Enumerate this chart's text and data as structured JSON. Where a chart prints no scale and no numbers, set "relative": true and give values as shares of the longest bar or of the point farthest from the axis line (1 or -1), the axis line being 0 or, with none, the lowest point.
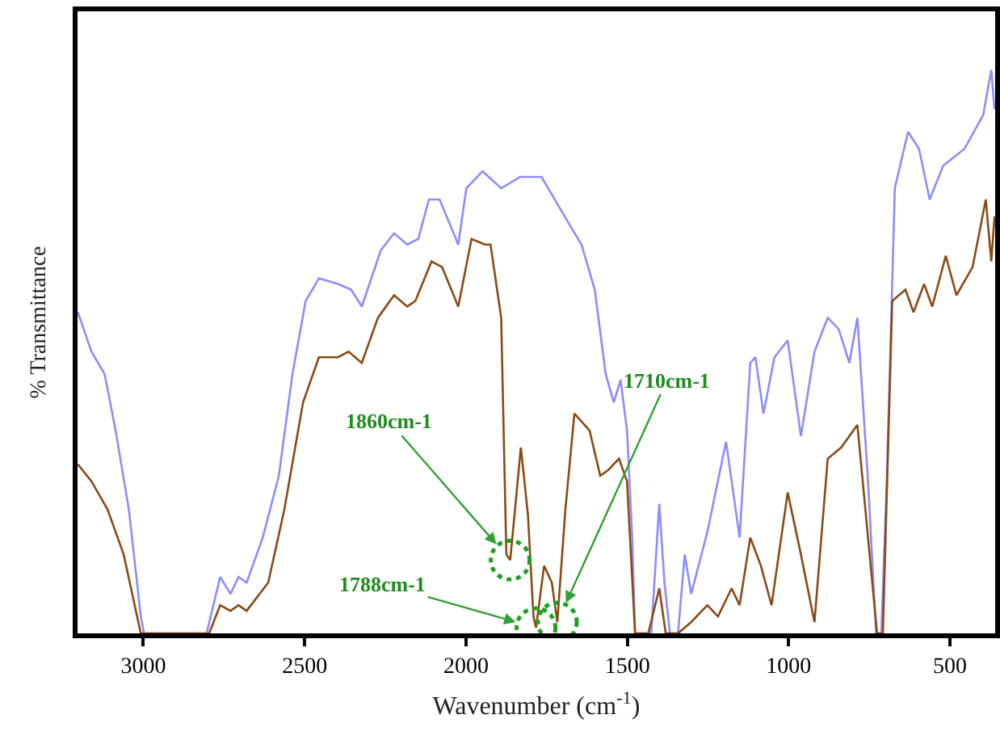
{
  "chart_data": {
    "type": "line",
    "relative": true,
    "xlabel": "Wavenumber (cm$^{-1}$)",
    "ylabel": "% Transmittance",
    "xlim": [
      3204,
      360
    ],
    "xticks": [
      3000,
      2500,
      2000,
      1500,
      1000,
      500
    ],
    "tick_labels": "x",
    "series": [
      {
        "color": "#8c8cff",
        "x": [
          3203,
          3161,
          3120,
          3086,
          3045,
          3008,
          2998,
          2804,
          2762,
          2730,
          2705,
          2680,
          2630,
          2580,
          2538,
          2497,
          2456,
          2397,
          2356,
          2323,
          2264,
          2223,
          2182,
          2148,
          2115,
          2082,
          2024,
          1999,
          1949,
          1891,
          1833,
          1766,
          1725,
          1684,
          1642,
          1601,
          1567,
          1542,
          1521,
          1501,
          1485,
          1476,
          1426,
          1401,
          1385,
          1368,
          1343,
          1322,
          1302,
          1252,
          1194,
          1152,
          1119,
          1103,
          1078,
          1044,
          1003,
          962,
          920,
          879,
          845,
          812,
          787,
          754,
          729,
          713,
          696,
          671,
          630,
          596,
          563,
          521,
          455,
          397,
          372,
          362
        ],
        "values": [
          0.57,
          0.5,
          0.46,
          0.36,
          0.22,
          0.03,
          0,
          0,
          0.1,
          0.07,
          0.1,
          0.09,
          0.17,
          0.28,
          0.46,
          0.59,
          0.63,
          0.62,
          0.61,
          0.58,
          0.68,
          0.71,
          0.69,
          0.7,
          0.77,
          0.77,
          0.69,
          0.79,
          0.82,
          0.79,
          0.81,
          0.81,
          0.77,
          0.73,
          0.69,
          0.61,
          0.46,
          0.41,
          0.45,
          0.36,
          0.17,
          0,
          0,
          0.23,
          0.09,
          0,
          0,
          0.14,
          0.07,
          0.18,
          0.34,
          0.17,
          0.48,
          0.49,
          0.39,
          0.49,
          0.52,
          0.35,
          0.5,
          0.56,
          0.54,
          0.48,
          0.56,
          0.27,
          0,
          0,
          0.27,
          0.79,
          0.89,
          0.86,
          0.77,
          0.83,
          0.86,
          0.92,
          1.0,
          0.93
        ]
      },
      {
        "color": "#8b4a14",
        "x": [
          3203,
          3161,
          3111,
          3061,
          3008,
          2796,
          2762,
          2730,
          2705,
          2680,
          2613,
          2563,
          2505,
          2456,
          2397,
          2364,
          2323,
          2273,
          2223,
          2182,
          2157,
          2107,
          2074,
          2024,
          1983,
          1941,
          1924,
          1891,
          1875,
          1863,
          1858,
          1830,
          1808,
          1791,
          1783,
          1758,
          1734,
          1717,
          1692,
          1664,
          1617,
          1584,
          1559,
          1526,
          1501,
          1476,
          1435,
          1401,
          1381,
          1343,
          1302,
          1252,
          1219,
          1177,
          1152,
          1119,
          1086,
          1053,
          1003,
          962,
          920,
          879,
          837,
          787,
          754,
          726,
          708,
          679,
          638,
          613,
          580,
          555,
          513,
          480,
          430,
          389,
          372,
          362
        ],
        "values": [
          0.3,
          0.27,
          0.22,
          0.14,
          0,
          0,
          0.05,
          0.04,
          0.05,
          0.04,
          0.09,
          0.22,
          0.41,
          0.49,
          0.49,
          0.5,
          0.48,
          0.56,
          0.6,
          0.58,
          0.59,
          0.66,
          0.65,
          0.58,
          0.7,
          0.69,
          0.69,
          0.56,
          0.14,
          0.13,
          0.16,
          0.33,
          0.21,
          0.03,
          0.01,
          0.12,
          0.09,
          0.02,
          0.22,
          0.39,
          0.36,
          0.28,
          0.29,
          0.31,
          0.27,
          0,
          0,
          0.08,
          0,
          0,
          0.02,
          0.05,
          0.03,
          0.08,
          0.05,
          0.17,
          0.12,
          0.05,
          0.25,
          0.14,
          0.02,
          0.31,
          0.33,
          0.37,
          0.17,
          0,
          0,
          0.59,
          0.61,
          0.57,
          0.62,
          0.58,
          0.67,
          0.6,
          0.65,
          0.77,
          0.66,
          0.74
        ]
      }
    ],
    "annotations": [
      {
        "text": "1860cm-1",
        "x": 1863,
        "y": 0.13
      },
      {
        "text": "1788cm-1",
        "x": 1783,
        "y": 0.01
      },
      {
        "text": "1710cm-1",
        "x": 1717,
        "y": 0.02
      }
    ]
  }
}
